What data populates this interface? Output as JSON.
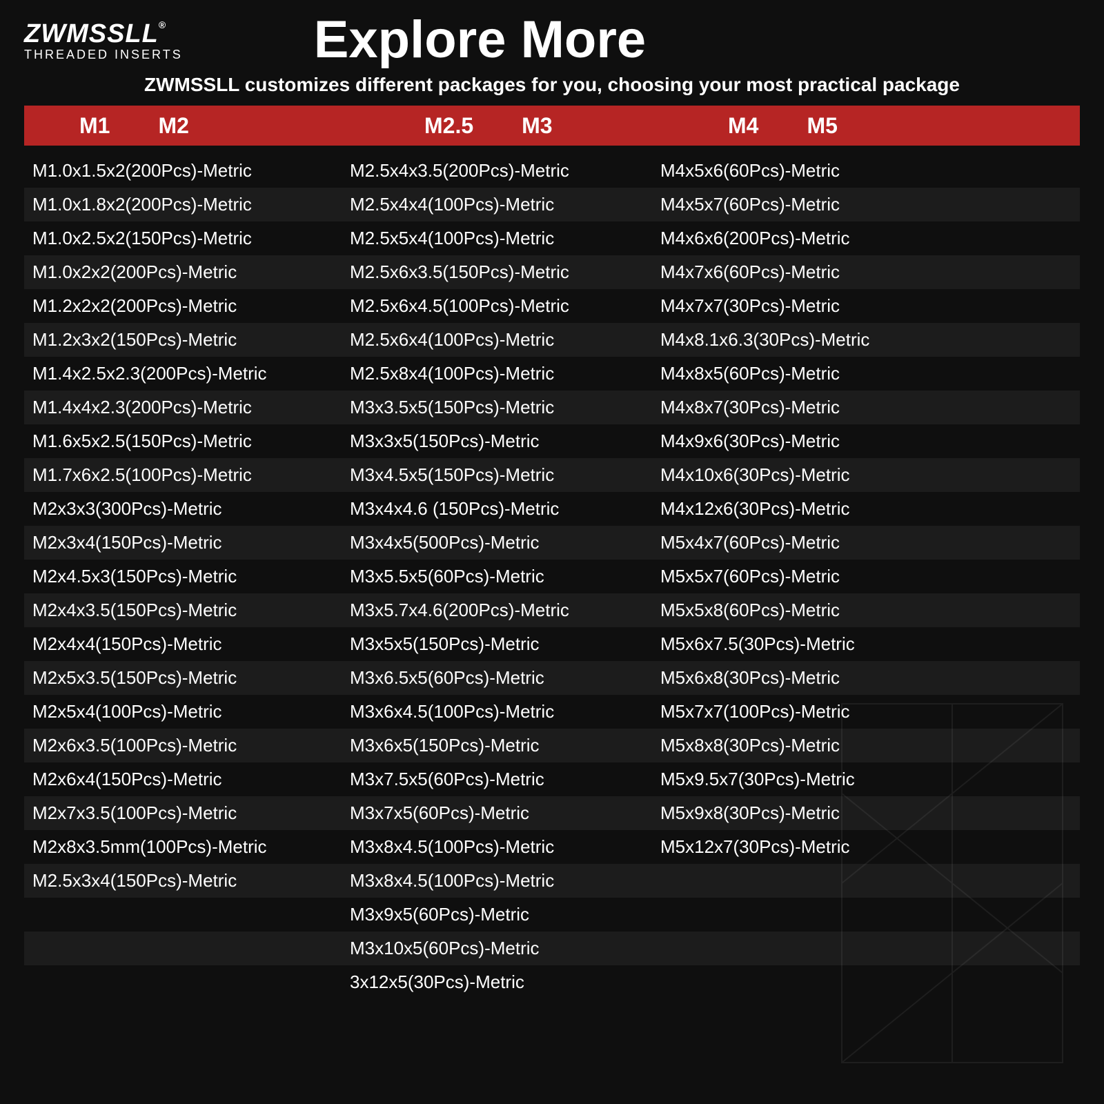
{
  "brand": {
    "name": "ZWMSSLL",
    "reg": "®",
    "sub": "THREADED INSERTS"
  },
  "title": "Explore More",
  "subtitle": "ZWMSSLL customizes different packages for you, choosing your most practical package",
  "colors": {
    "background": "#0f0f0f",
    "row_alt": "#1c1c1c",
    "header_bar": "#b62524",
    "text": "#ffffff"
  },
  "header": {
    "seg1": [
      "M1",
      "M2"
    ],
    "seg2": [
      "M2.5",
      "M3"
    ],
    "seg3": [
      "M4",
      "M5"
    ]
  },
  "rows": [
    {
      "c1": "M1.0x1.5x2(200Pcs)-Metric",
      "c2": "M2.5x4x3.5(200Pcs)-Metric",
      "c3": "M4x5x6(60Pcs)-Metric"
    },
    {
      "c1": "M1.0x1.8x2(200Pcs)-Metric",
      "c2": "M2.5x4x4(100Pcs)-Metric",
      "c3": "M4x5x7(60Pcs)-Metric"
    },
    {
      "c1": "M1.0x2.5x2(150Pcs)-Metric",
      "c2": "M2.5x5x4(100Pcs)-Metric",
      "c3": "M4x6x6(200Pcs)-Metric"
    },
    {
      "c1": "M1.0x2x2(200Pcs)-Metric",
      "c2": "M2.5x6x3.5(150Pcs)-Metric",
      "c3": "M4x7x6(60Pcs)-Metric"
    },
    {
      "c1": "M1.2x2x2(200Pcs)-Metric",
      "c2": "M2.5x6x4.5(100Pcs)-Metric",
      "c3": "M4x7x7(30Pcs)-Metric"
    },
    {
      "c1": "M1.2x3x2(150Pcs)-Metric",
      "c2": "M2.5x6x4(100Pcs)-Metric",
      "c3": "M4x8.1x6.3(30Pcs)-Metric"
    },
    {
      "c1": "M1.4x2.5x2.3(200Pcs)-Metric",
      "c2": "M2.5x8x4(100Pcs)-Metric",
      "c3": "M4x8x5(60Pcs)-Metric"
    },
    {
      "c1": "M1.4x4x2.3(200Pcs)-Metric",
      "c2": "M3x3.5x5(150Pcs)-Metric",
      "c3": "M4x8x7(30Pcs)-Metric"
    },
    {
      "c1": "M1.6x5x2.5(150Pcs)-Metric",
      "c2": "M3x3x5(150Pcs)-Metric",
      "c3": "M4x9x6(30Pcs)-Metric"
    },
    {
      "c1": "M1.7x6x2.5(100Pcs)-Metric",
      "c2": "M3x4.5x5(150Pcs)-Metric",
      "c3": "M4x10x6(30Pcs)-Metric"
    },
    {
      "c1": "M2x3x3(300Pcs)-Metric",
      "c2": "M3x4x4.6 (150Pcs)-Metric",
      "c3": "M4x12x6(30Pcs)-Metric"
    },
    {
      "c1": "M2x3x4(150Pcs)-Metric",
      "c2": "M3x4x5(500Pcs)-Metric",
      "c3": "M5x4x7(60Pcs)-Metric"
    },
    {
      "c1": "M2x4.5x3(150Pcs)-Metric",
      "c2": "M3x5.5x5(60Pcs)-Metric",
      "c3": "M5x5x7(60Pcs)-Metric"
    },
    {
      "c1": "M2x4x3.5(150Pcs)-Metric",
      "c2": "M3x5.7x4.6(200Pcs)-Metric",
      "c3": "M5x5x8(60Pcs)-Metric"
    },
    {
      "c1": "M2x4x4(150Pcs)-Metric",
      "c2": "M3x5x5(150Pcs)-Metric",
      "c3": "M5x6x7.5(30Pcs)-Metric"
    },
    {
      "c1": "M2x5x3.5(150Pcs)-Metric",
      "c2": "M3x6.5x5(60Pcs)-Metric",
      "c3": "M5x6x8(30Pcs)-Metric"
    },
    {
      "c1": "M2x5x4(100Pcs)-Metric",
      "c2": "M3x6x4.5(100Pcs)-Metric",
      "c3": "M5x7x7(100Pcs)-Metric"
    },
    {
      "c1": "M2x6x3.5(100Pcs)-Metric",
      "c2": "M3x6x5(150Pcs)-Metric",
      "c3": "M5x8x8(30Pcs)-Metric"
    },
    {
      "c1": "M2x6x4(150Pcs)-Metric",
      "c2": "M3x7.5x5(60Pcs)-Metric",
      "c3": "M5x9.5x7(30Pcs)-Metric"
    },
    {
      "c1": "M2x7x3.5(100Pcs)-Metric",
      "c2": "M3x7x5(60Pcs)-Metric",
      "c3": "M5x9x8(30Pcs)-Metric"
    },
    {
      "c1": "M2x8x3.5mm(100Pcs)-Metric",
      "c2": "M3x8x4.5(100Pcs)-Metric",
      "c3": "M5x12x7(30Pcs)-Metric"
    },
    {
      "c1": "M2.5x3x4(150Pcs)-Metric",
      "c2": "M3x8x4.5(100Pcs)-Metric",
      "c3": ""
    },
    {
      "c1": "",
      "c2": "M3x9x5(60Pcs)-Metric",
      "c3": ""
    },
    {
      "c1": "",
      "c2": "M3x10x5(60Pcs)-Metric",
      "c3": ""
    },
    {
      "c1": "",
      "c2": "3x12x5(30Pcs)-Metric",
      "c3": ""
    }
  ]
}
